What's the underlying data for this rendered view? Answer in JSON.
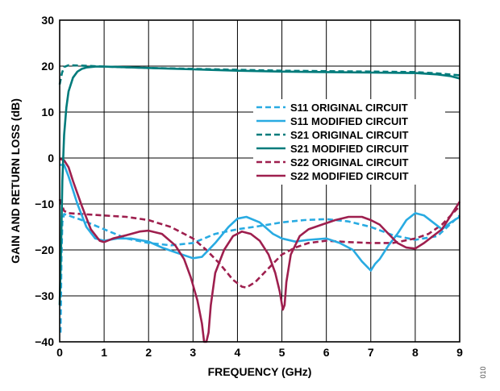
{
  "figure_id": "010",
  "chart_data": {
    "type": "line",
    "title": "",
    "xlabel": "FREQUENCY (GHz)",
    "ylabel": "GAIN AND RETURN LOSS (dB)",
    "xlim": [
      0,
      9
    ],
    "ylim": [
      -40,
      30
    ],
    "xticks": [
      0,
      1,
      2,
      3,
      4,
      5,
      6,
      7,
      8,
      9
    ],
    "yticks": [
      30,
      20,
      10,
      0,
      -10,
      -20,
      -30,
      -40
    ],
    "grid": true,
    "legend_position": "right",
    "series": [
      {
        "name": "S11 ORIGINAL CIRCUIT",
        "color": "#29abe2",
        "dash": "dashed",
        "x": [
          0.02,
          0.04,
          0.06,
          0.1,
          0.2,
          0.5,
          1.0,
          1.5,
          2.0,
          2.5,
          3.0,
          3.5,
          4.0,
          4.5,
          5.0,
          5.5,
          6.0,
          6.5,
          7.0,
          7.5,
          8.0,
          8.5,
          9.0
        ],
        "y": [
          -38,
          -22,
          -14,
          -12.2,
          -12.5,
          -13.5,
          -15.5,
          -17.5,
          -18.5,
          -19,
          -18.5,
          -16.5,
          -15.5,
          -14.8,
          -14,
          -13.5,
          -13.3,
          -13.8,
          -15,
          -16.8,
          -17.8,
          -17,
          -12.5
        ]
      },
      {
        "name": "S11 MODIFIED CIRCUIT",
        "color": "#29abe2",
        "dash": "solid",
        "x": [
          0.0,
          0.1,
          0.2,
          0.4,
          0.6,
          0.8,
          1.0,
          1.3,
          1.6,
          2.0,
          2.3,
          2.6,
          3.0,
          3.2,
          3.5,
          3.8,
          4.0,
          4.2,
          4.5,
          4.8,
          5.0,
          5.3,
          5.6,
          6.0,
          6.3,
          6.6,
          6.8,
          7.0,
          7.1,
          7.2,
          7.4,
          7.6,
          7.8,
          8.0,
          8.2,
          8.4,
          8.6,
          8.8,
          9.0
        ],
        "y": [
          -1.5,
          -1.5,
          -4,
          -10,
          -15,
          -17.5,
          -18,
          -17.5,
          -17.5,
          -18.2,
          -19.5,
          -20.5,
          -21.8,
          -21.5,
          -18.5,
          -15,
          -13.2,
          -12.8,
          -14,
          -16.5,
          -17.5,
          -18.2,
          -17.8,
          -17.5,
          -18.5,
          -20,
          -22.5,
          -24.5,
          -23,
          -22,
          -19,
          -16.5,
          -13.5,
          -12,
          -12.5,
          -14,
          -15.5,
          -14,
          -12.8
        ]
      },
      {
        "name": "S21 ORIGINAL CIRCUIT",
        "color": "#007b7b",
        "dash": "dashed",
        "x": [
          0.0,
          0.05,
          0.1,
          0.2,
          0.5,
          1.0,
          2.0,
          3.0,
          4.0,
          5.0,
          6.0,
          7.0,
          8.0,
          8.5,
          9.0
        ],
        "y": [
          16,
          18.5,
          19.8,
          20.2,
          20.1,
          19.9,
          19.6,
          19.4,
          19.2,
          19.0,
          18.9,
          18.8,
          18.7,
          18.4,
          18.0
        ]
      },
      {
        "name": "S21 MODIFIED CIRCUIT",
        "color": "#007b7b",
        "dash": "solid",
        "x": [
          0.0,
          0.03,
          0.06,
          0.1,
          0.15,
          0.2,
          0.3,
          0.4,
          0.5,
          0.6,
          0.8,
          1.0,
          2.0,
          3.0,
          4.0,
          5.0,
          6.0,
          7.0,
          8.0,
          8.5,
          8.8,
          9.0
        ],
        "y": [
          -32,
          -20,
          -5,
          5,
          11,
          14.5,
          17.5,
          18.8,
          19.4,
          19.7,
          19.9,
          19.9,
          19.6,
          19.3,
          19.0,
          18.8,
          18.7,
          18.6,
          18.5,
          18.2,
          17.8,
          17.3
        ]
      },
      {
        "name": "S22 ORIGINAL CIRCUIT",
        "color": "#9e1f4e",
        "dash": "dashed",
        "x": [
          0.0,
          0.1,
          0.2,
          0.5,
          1.0,
          1.5,
          2.0,
          2.5,
          3.0,
          3.3,
          3.6,
          3.9,
          4.1,
          4.2,
          4.4,
          4.7,
          5.0,
          5.3,
          5.6,
          6.0,
          6.5,
          7.0,
          7.5,
          8.0,
          8.3,
          8.6,
          9.0
        ],
        "y": [
          -9,
          -11.5,
          -12,
          -12.2,
          -12.5,
          -12.8,
          -13.5,
          -15,
          -17.5,
          -20,
          -23,
          -26.5,
          -28,
          -28.2,
          -27,
          -24,
          -21,
          -19.5,
          -18.5,
          -18,
          -18.3,
          -18.5,
          -18.5,
          -17.5,
          -16.5,
          -14.5,
          -10.5
        ]
      },
      {
        "name": "S22 MODIFIED CIRCUIT",
        "color": "#9e1f4e",
        "dash": "solid",
        "x": [
          0.0,
          0.1,
          0.2,
          0.3,
          0.5,
          0.7,
          0.9,
          1.0,
          1.2,
          1.5,
          1.8,
          2.0,
          2.3,
          2.6,
          2.8,
          2.95,
          3.1,
          3.2,
          3.25,
          3.3,
          3.35,
          3.4,
          3.5,
          3.7,
          3.9,
          4.1,
          4.3,
          4.5,
          4.7,
          4.85,
          4.95,
          5.02,
          5.06,
          5.1,
          5.2,
          5.4,
          5.6,
          5.9,
          6.2,
          6.5,
          6.8,
          7.0,
          7.2,
          7.4,
          7.6,
          7.8,
          8.0,
          8.2,
          8.4,
          8.6,
          8.8,
          9.0
        ],
        "y": [
          -0.2,
          -0.5,
          -2,
          -5,
          -10.5,
          -15.5,
          -18,
          -18.3,
          -17.5,
          -16.8,
          -16,
          -15.8,
          -16.5,
          -19,
          -22,
          -26,
          -31,
          -36,
          -40,
          -40,
          -38,
          -32,
          -25,
          -20,
          -17,
          -16,
          -16.5,
          -18,
          -21,
          -25,
          -29,
          -33,
          -32,
          -27,
          -21,
          -17,
          -15.5,
          -14.5,
          -13.5,
          -12.8,
          -12.8,
          -13.5,
          -14.5,
          -16.5,
          -18.5,
          -19.5,
          -19.7,
          -18.5,
          -17,
          -15.5,
          -12.5,
          -9.5
        ]
      }
    ]
  }
}
